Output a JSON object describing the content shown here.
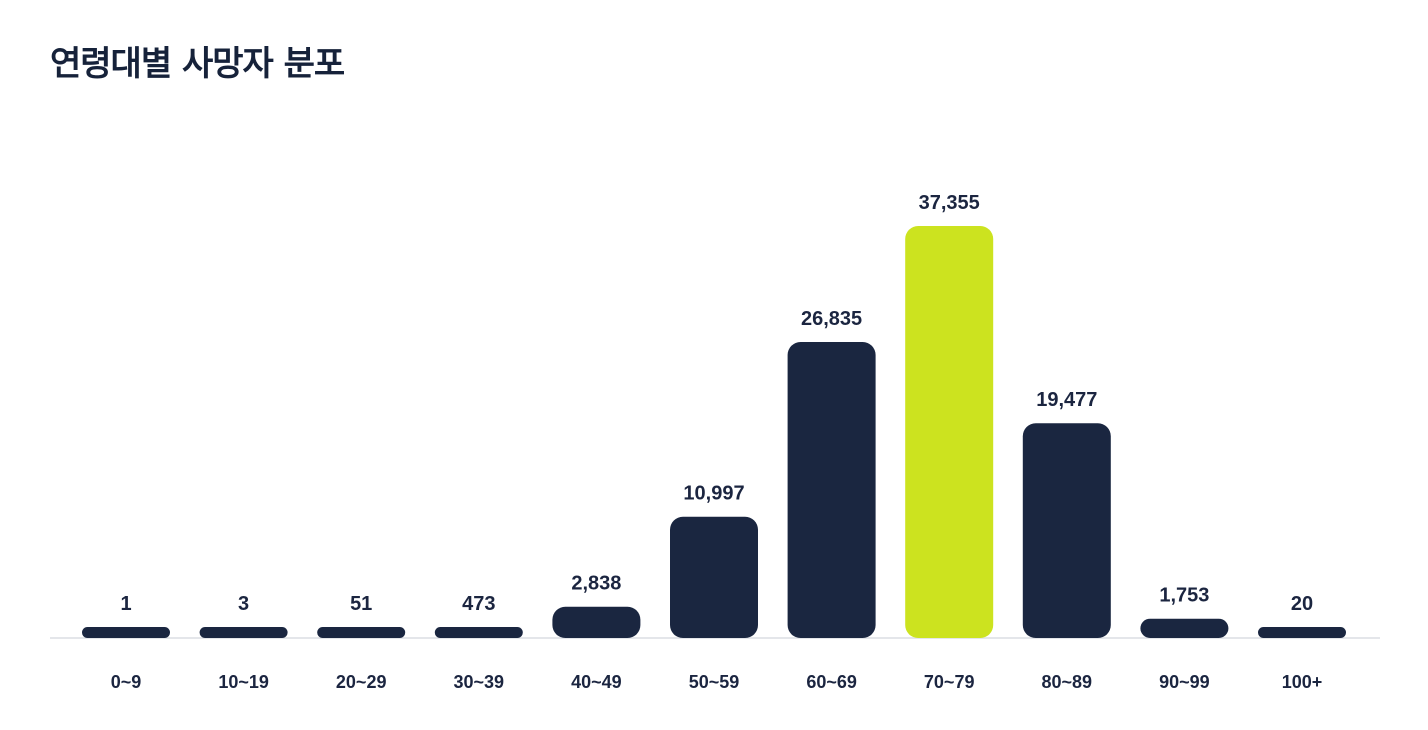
{
  "title": "연령대별 사망자 분포",
  "colors": {
    "bar": "#1a2640",
    "highlight": "#cce31f",
    "baseline": "#e4e6ea",
    "text": "#1b2540"
  },
  "chart_data": {
    "type": "bar",
    "title": "연령대별 사망자 분포",
    "xlabel": "",
    "ylabel": "",
    "categories": [
      "0~9",
      "10~19",
      "20~29",
      "30~39",
      "40~49",
      "50~59",
      "60~69",
      "70~79",
      "80~89",
      "90~99",
      "100+"
    ],
    "values": [
      1,
      3,
      51,
      473,
      2838,
      10997,
      26835,
      37355,
      19477,
      1753,
      20
    ],
    "value_labels": [
      "1",
      "3",
      "51",
      "473",
      "2,838",
      "10,997",
      "26,835",
      "37,355",
      "19,477",
      "1,753",
      "20"
    ],
    "highlight_category": "70~79",
    "ylim": [
      0,
      37355
    ],
    "grid": false,
    "legend": "none"
  }
}
